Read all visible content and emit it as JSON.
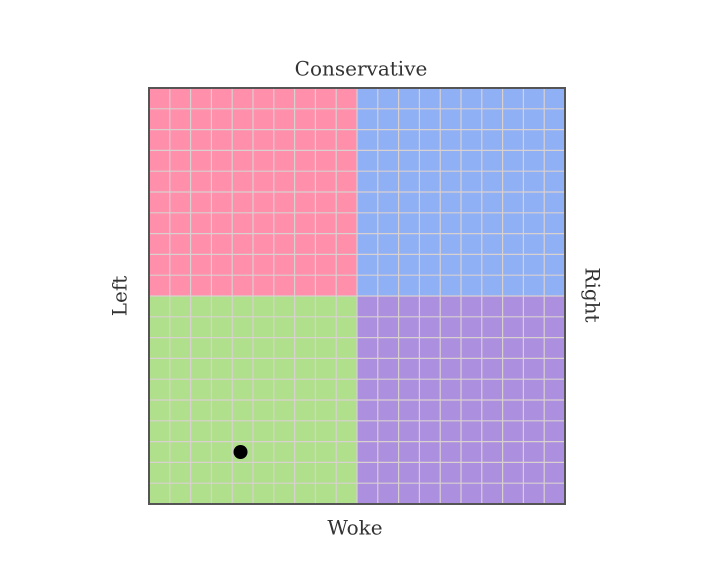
{
  "chart_data": {
    "type": "scatter",
    "top_label": "Conservative",
    "bottom_label": "Woke",
    "left_label": "Left",
    "right_label": "Right",
    "xlim": [
      -10,
      10
    ],
    "ylim": [
      -10,
      10
    ],
    "grid": true,
    "quadrant_colors": {
      "top_left": "#ff8fab",
      "top_right": "#8fb0f5",
      "bottom_left": "#b0e08c",
      "bottom_right": "#ad8fe0"
    },
    "series": [
      {
        "color": "#000000",
        "x": [
          -5.6
        ],
        "values": [
          -7.5
        ]
      }
    ]
  }
}
